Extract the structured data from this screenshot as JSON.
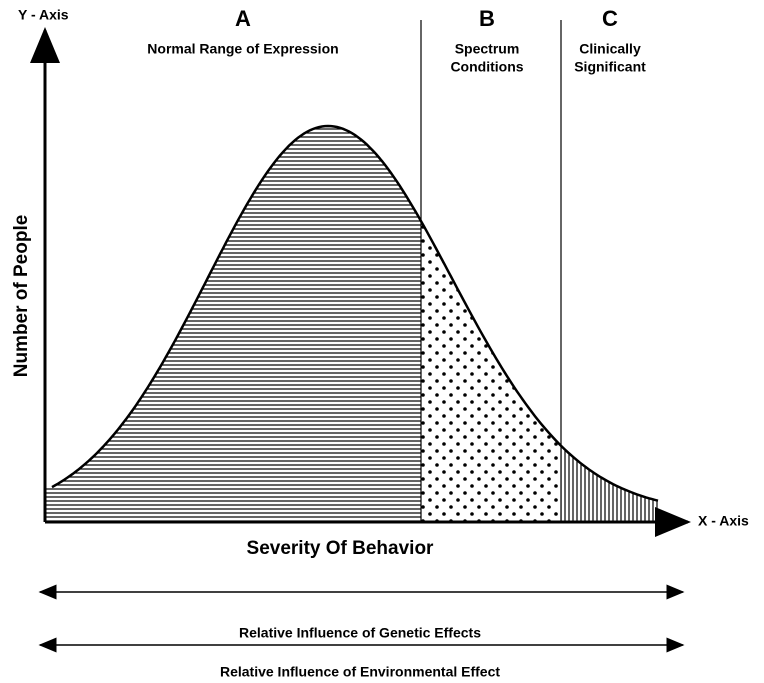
{
  "y_axis_label": "Y - Axis",
  "x_axis_label": "X - Axis",
  "vertical_title": "Number of People",
  "horizontal_title": "Severity Of Behavior",
  "regions": [
    {
      "letter": "A",
      "lines": [
        "Normal Range of Expression"
      ]
    },
    {
      "letter": "B",
      "lines": [
        "Spectrum",
        "Conditions"
      ]
    },
    {
      "letter": "C",
      "lines": [
        "Clinically",
        "Significant"
      ]
    }
  ],
  "arrows": [
    "Relative Influence of Genetic Effects",
    "Relative Influence of Environmental Effect"
  ]
}
